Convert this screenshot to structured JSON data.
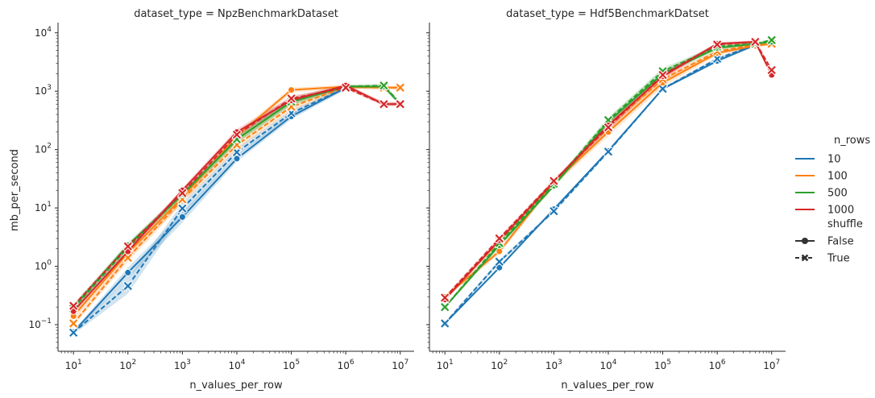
{
  "chart_data": {
    "type": "line",
    "x_scale": "log",
    "y_scale": "log",
    "xlabel": "n_values_per_row",
    "ylabel": "mb_per_second",
    "xlim": [
      5.2,
      18000000
    ],
    "ylim": [
      0.035,
      15000
    ],
    "x_ticks": [
      {
        "value": 10,
        "base": "10",
        "exp": "1"
      },
      {
        "value": 100,
        "base": "10",
        "exp": "2"
      },
      {
        "value": 1000,
        "base": "10",
        "exp": "3"
      },
      {
        "value": 10000,
        "base": "10",
        "exp": "4"
      },
      {
        "value": 100000,
        "base": "10",
        "exp": "5"
      },
      {
        "value": 1000000,
        "base": "10",
        "exp": "6"
      },
      {
        "value": 10000000,
        "base": "10",
        "exp": "7"
      }
    ],
    "y_ticks": [
      {
        "value": 0.1,
        "base": "10",
        "exp": "−1"
      },
      {
        "value": 1,
        "base": "10",
        "exp": "0"
      },
      {
        "value": 10,
        "base": "10",
        "exp": "1"
      },
      {
        "value": 100,
        "base": "10",
        "exp": "2"
      },
      {
        "value": 1000,
        "base": "10",
        "exp": "3"
      },
      {
        "value": 10000,
        "base": "10",
        "exp": "4"
      }
    ],
    "colors": {
      "10": "#1f77b4",
      "100": "#ff7f0e",
      "500": "#2ca02c",
      "1000": "#d62728"
    },
    "legend": {
      "placement": "right",
      "hue_title": "n_rows",
      "hue_items": [
        "10",
        "100",
        "500",
        "1000"
      ],
      "style_title": "shuffle",
      "style_items": [
        {
          "label": "False",
          "marker": "circle",
          "dash": "solid"
        },
        {
          "label": "True",
          "marker": "x",
          "dash": "dashed"
        }
      ]
    },
    "panels": [
      {
        "title": "dataset_type = NpzBenchmarkDataset",
        "series": [
          {
            "n_rows": "10",
            "shuffle": "False",
            "x": [
              10,
              100,
              1000,
              10000,
              100000,
              1000000
            ],
            "y": [
              0.075,
              0.78,
              7.0,
              70,
              370,
              1150
            ],
            "band": [
              [
                0.07,
                0.08
              ],
              [
                0.62,
                0.95
              ],
              [
                5.6,
                8.4
              ],
              [
                62,
                80
              ],
              [
                330,
                410
              ],
              [
                1060,
                1240
              ]
            ]
          },
          {
            "n_rows": "10",
            "shuffle": "True",
            "x": [
              10,
              100,
              1000,
              10000,
              100000,
              1000000
            ],
            "y": [
              0.073,
              0.46,
              9.8,
              90,
              420,
              1150
            ],
            "band": [
              [
                0.068,
                0.078
              ],
              [
                0.34,
                0.62
              ],
              [
                7.8,
                12
              ],
              [
                78,
                105
              ],
              [
                380,
                470
              ],
              [
                1060,
                1240
              ]
            ]
          },
          {
            "n_rows": "100",
            "shuffle": "False",
            "x": [
              10,
              100,
              1000,
              10000,
              100000,
              1000000,
              5000000,
              10000000
            ],
            "y": [
              0.14,
              1.7,
              15,
              170,
              1050,
              1200,
              1150,
              1150
            ],
            "band": [
              [
                0.12,
                0.16
              ],
              [
                1.4,
                2.0
              ],
              [
                12,
                18
              ],
              [
                140,
                195
              ],
              [
                950,
                1150
              ],
              [
                1120,
                1280
              ],
              [
                1080,
                1220
              ],
              [
                1080,
                1220
              ]
            ]
          },
          {
            "n_rows": "100",
            "shuffle": "True",
            "x": [
              10,
              100,
              1000,
              10000,
              100000,
              1000000,
              5000000,
              10000000
            ],
            "y": [
              0.105,
              1.4,
              14,
              120,
              540,
              1180,
              1150,
              1150
            ],
            "band": [
              [
                0.095,
                0.115
              ],
              [
                1.2,
                1.6
              ],
              [
                12,
                16
              ],
              [
                100,
                145
              ],
              [
                460,
                640
              ],
              [
                1100,
                1260
              ],
              [
                1080,
                1220
              ],
              [
                1080,
                1220
              ]
            ]
          },
          {
            "n_rows": "500",
            "shuffle": "False",
            "x": [
              10,
              100,
              1000,
              10000,
              100000,
              1000000,
              5000000,
              10000000
            ],
            "y": [
              0.2,
              2.3,
              17,
              150,
              660,
              1200,
              1200,
              600
            ],
            "band": [
              [
                0.18,
                0.22
              ],
              [
                2.0,
                2.6
              ],
              [
                15,
                19
              ],
              [
                130,
                170
              ],
              [
                580,
                750
              ],
              [
                1120,
                1280
              ],
              [
                1120,
                1280
              ],
              [
                560,
                650
              ]
            ]
          },
          {
            "n_rows": "500",
            "shuffle": "True",
            "x": [
              10,
              100,
              1000,
              10000,
              100000,
              1000000,
              5000000,
              10000000
            ],
            "y": [
              0.19,
              2.1,
              17,
              150,
              660,
              1200,
              1250,
              620
            ],
            "band": [
              [
                0.17,
                0.21
              ],
              [
                1.9,
                2.4
              ],
              [
                15,
                19
              ],
              [
                130,
                170
              ],
              [
                580,
                750
              ],
              [
                1120,
                1280
              ],
              [
                1160,
                1340
              ],
              [
                580,
                670
              ]
            ]
          },
          {
            "n_rows": "1000",
            "shuffle": "False",
            "x": [
              10,
              100,
              1000,
              10000,
              100000,
              1000000,
              5000000,
              10000000
            ],
            "y": [
              0.17,
              1.8,
              20,
              200,
              700,
              1250,
              600,
              600
            ],
            "band": [
              [
                0.15,
                0.19
              ],
              [
                1.6,
                2.0
              ],
              [
                18,
                22
              ],
              [
                175,
                225
              ],
              [
                620,
                790
              ],
              [
                1170,
                1340
              ],
              [
                560,
                650
              ],
              [
                560,
                650
              ]
            ]
          },
          {
            "n_rows": "1000",
            "shuffle": "True",
            "x": [
              10,
              100,
              1000,
              10000,
              100000,
              1000000,
              5000000,
              10000000
            ],
            "y": [
              0.21,
              2.2,
              18,
              180,
              750,
              1150,
              600,
              600
            ],
            "band": [
              [
                0.19,
                0.23
              ],
              [
                2.0,
                2.4
              ],
              [
                16,
                20
              ],
              [
                160,
                200
              ],
              [
                670,
                840
              ],
              [
                1080,
                1230
              ],
              [
                560,
                650
              ],
              [
                560,
                650
              ]
            ]
          }
        ]
      },
      {
        "title": "dataset_type = Hdf5BenchmarkDatset",
        "series": [
          {
            "n_rows": "10",
            "shuffle": "False",
            "x": [
              10,
              100,
              1000,
              10000,
              100000,
              1000000,
              5000000
            ],
            "y": [
              0.105,
              0.95,
              9.5,
              95,
              1100,
              3300,
              6200
            ],
            "band": [
              [
                0.1,
                0.11
              ],
              [
                0.9,
                1.0
              ],
              [
                9,
                10
              ],
              [
                90,
                100
              ],
              [
                1050,
                1150
              ],
              [
                3100,
                3500
              ],
              [
                5900,
                6500
              ]
            ]
          },
          {
            "n_rows": "10",
            "shuffle": "True",
            "x": [
              10,
              100,
              1000,
              10000,
              100000,
              1000000,
              5000000
            ],
            "y": [
              0.105,
              1.2,
              8.8,
              92,
              1100,
              3600,
              6200
            ],
            "band": [
              [
                0.1,
                0.11
              ],
              [
                1.1,
                1.3
              ],
              [
                8.4,
                9.2
              ],
              [
                88,
                96
              ],
              [
                1050,
                1150
              ],
              [
                3400,
                3800
              ],
              [
                5900,
                6500
              ]
            ]
          },
          {
            "n_rows": "100",
            "shuffle": "False",
            "x": [
              10,
              100,
              1000,
              10000,
              100000,
              1000000,
              5000000,
              10000000
            ],
            "y": [
              0.3,
              1.8,
              27,
              200,
              1400,
              4500,
              6000,
              6500
            ],
            "band": [
              [
                0.28,
                0.32
              ],
              [
                1.6,
                2.0
              ],
              [
                24,
                30
              ],
              [
                170,
                240
              ],
              [
                1200,
                1600
              ],
              [
                4100,
                4900
              ],
              [
                5600,
                6400
              ],
              [
                6100,
                6900
              ]
            ]
          },
          {
            "n_rows": "100",
            "shuffle": "True",
            "x": [
              10,
              100,
              1000,
              10000,
              100000,
              1000000,
              5000000,
              10000000
            ],
            "y": [
              0.28,
              2.7,
              27,
              250,
              1600,
              4800,
              6300,
              6500
            ],
            "band": [
              [
                0.26,
                0.3
              ],
              [
                2.4,
                3.0
              ],
              [
                24,
                30
              ],
              [
                210,
                290
              ],
              [
                1400,
                1800
              ],
              [
                4400,
                5200
              ],
              [
                5900,
                6700
              ],
              [
                6100,
                6900
              ]
            ]
          },
          {
            "n_rows": "500",
            "shuffle": "False",
            "x": [
              10,
              100,
              1000,
              10000,
              100000,
              1000000,
              5000000,
              10000000
            ],
            "y": [
              0.2,
              2.3,
              24,
              300,
              2000,
              5500,
              6500,
              7000
            ],
            "band": [
              [
                0.19,
                0.21
              ],
              [
                2.1,
                2.5
              ],
              [
                22,
                26
              ],
              [
                260,
                340
              ],
              [
                1800,
                2300
              ],
              [
                5100,
                5900
              ],
              [
                6100,
                6900
              ],
              [
                6600,
                7400
              ]
            ]
          },
          {
            "n_rows": "500",
            "shuffle": "True",
            "x": [
              10,
              100,
              1000,
              10000,
              100000,
              1000000,
              5000000,
              10000000
            ],
            "y": [
              0.2,
              2.5,
              26,
              320,
              2200,
              5800,
              6500,
              7500
            ],
            "band": [
              [
                0.19,
                0.21
              ],
              [
                2.3,
                2.7
              ],
              [
                24,
                28
              ],
              [
                280,
                360
              ],
              [
                1900,
                2500
              ],
              [
                5400,
                6200
              ],
              [
                6100,
                6900
              ],
              [
                7000,
                8000
              ]
            ]
          },
          {
            "n_rows": "1000",
            "shuffle": "False",
            "x": [
              10,
              100,
              1000,
              10000,
              100000,
              1000000,
              5000000,
              10000000
            ],
            "y": [
              0.27,
              2.8,
              28,
              260,
              1800,
              6500,
              7000,
              1900
            ],
            "band": [
              [
                0.25,
                0.29
              ],
              [
                2.6,
                3.0
              ],
              [
                26,
                30
              ],
              [
                230,
                290
              ],
              [
                1600,
                2000
              ],
              [
                6100,
                6900
              ],
              [
                6600,
                7400
              ],
              [
                1800,
                2000
              ]
            ]
          },
          {
            "n_rows": "1000",
            "shuffle": "True",
            "x": [
              10,
              100,
              1000,
              10000,
              100000,
              1000000,
              5000000,
              10000000
            ],
            "y": [
              0.29,
              3.0,
              29,
              240,
              1900,
              6300,
              7000,
              2300
            ],
            "band": [
              [
                0.27,
                0.31
              ],
              [
                2.8,
                3.2
              ],
              [
                27,
                31
              ],
              [
                210,
                270
              ],
              [
                1700,
                2100
              ],
              [
                5900,
                6700
              ],
              [
                6600,
                7400
              ],
              [
                2150,
                2450
              ]
            ]
          }
        ]
      }
    ]
  }
}
